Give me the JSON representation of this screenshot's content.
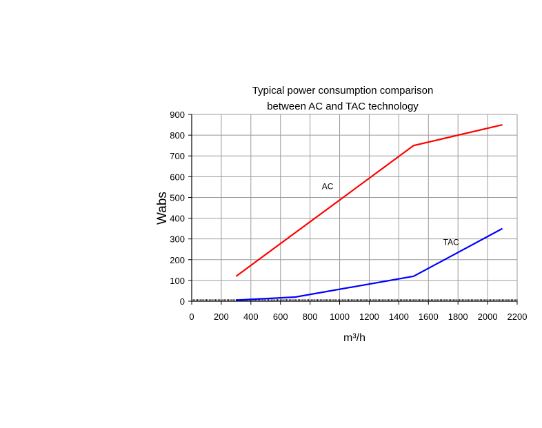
{
  "chart_data": {
    "type": "line",
    "title_lines": [
      "Typical power consumption comparison",
      "between AC and TAC technology"
    ],
    "xlabel": "m³/h",
    "ylabel": "Wabs",
    "xlim": [
      0,
      2200
    ],
    "ylim": [
      0,
      900
    ],
    "x_ticks": [
      0,
      200,
      400,
      600,
      800,
      1000,
      1200,
      1400,
      1600,
      1800,
      2000,
      2200
    ],
    "y_ticks": [
      0,
      100,
      200,
      300,
      400,
      500,
      600,
      700,
      800,
      900
    ],
    "grid": true,
    "series": [
      {
        "name": "AC",
        "color": "#ff0000",
        "points": [
          [
            300,
            120
          ],
          [
            1500,
            750
          ],
          [
            2100,
            850
          ]
        ]
      },
      {
        "name": "TAC",
        "color": "#0000ff",
        "points": [
          [
            300,
            5
          ],
          [
            700,
            20
          ],
          [
            1500,
            120
          ],
          [
            2100,
            350
          ]
        ]
      }
    ],
    "annotations": [
      {
        "text": "AC",
        "x": 880,
        "y": 540
      },
      {
        "text": "TAC",
        "x": 1700,
        "y": 270
      }
    ]
  }
}
